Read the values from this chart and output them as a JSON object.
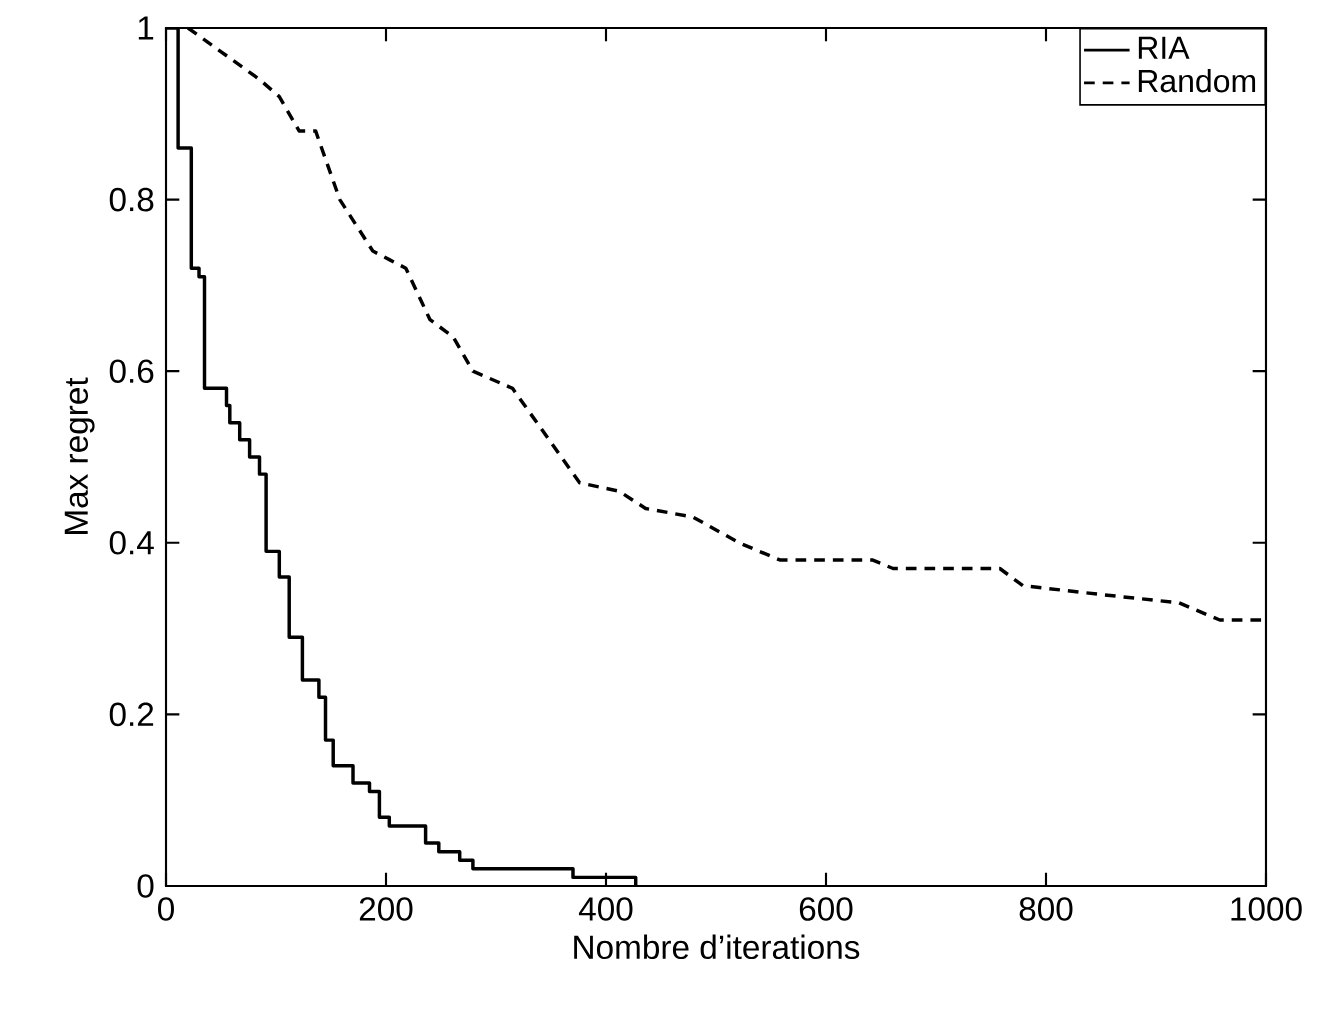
{
  "chart_data": {
    "type": "line",
    "xlabel": "Nombre d’iterations",
    "ylabel": "Max regret",
    "xlim": [
      0,
      1000
    ],
    "ylim": [
      0,
      1
    ],
    "xticks": [
      0,
      200,
      400,
      600,
      800,
      1000
    ],
    "yticks": [
      0,
      0.2,
      0.4,
      0.6,
      0.8,
      1
    ],
    "legend": "top right",
    "grid": false,
    "marker": "none",
    "series": [
      {
        "name": "RIA",
        "type": "step",
        "color": "#000000",
        "line_style": "solid",
        "x": [
          0,
          11,
          23,
          30,
          35,
          45,
          55,
          58,
          67,
          76,
          85,
          91,
          103,
          112,
          124,
          139,
          145,
          152,
          170,
          185,
          194,
          203,
          224,
          236,
          248,
          267,
          279,
          297,
          370,
          427
        ],
        "values": [
          1,
          0.86,
          0.72,
          0.71,
          0.58,
          0.58,
          0.56,
          0.54,
          0.52,
          0.5,
          0.48,
          0.39,
          0.36,
          0.29,
          0.24,
          0.22,
          0.17,
          0.14,
          0.12,
          0.11,
          0.08,
          0.07,
          0.07,
          0.05,
          0.04,
          0.03,
          0.02,
          0.02,
          0.01,
          0
        ]
      },
      {
        "name": "Random",
        "color": "#000000",
        "line_style": "dashed",
        "x": [
          20,
          85,
          103,
          121,
          136,
          158,
          188,
          203,
          218,
          240,
          261,
          279,
          315,
          376,
          412,
          436,
          479,
          521,
          558,
          642,
          661,
          758,
          779,
          848,
          921,
          958,
          1000
        ],
        "values": [
          1,
          0.94,
          0.92,
          0.88,
          0.88,
          0.8,
          0.74,
          0.73,
          0.72,
          0.66,
          0.64,
          0.6,
          0.58,
          0.47,
          0.46,
          0.44,
          0.43,
          0.4,
          0.38,
          0.38,
          0.37,
          0.37,
          0.35,
          0.34,
          0.33,
          0.31,
          0.31
        ]
      }
    ]
  }
}
